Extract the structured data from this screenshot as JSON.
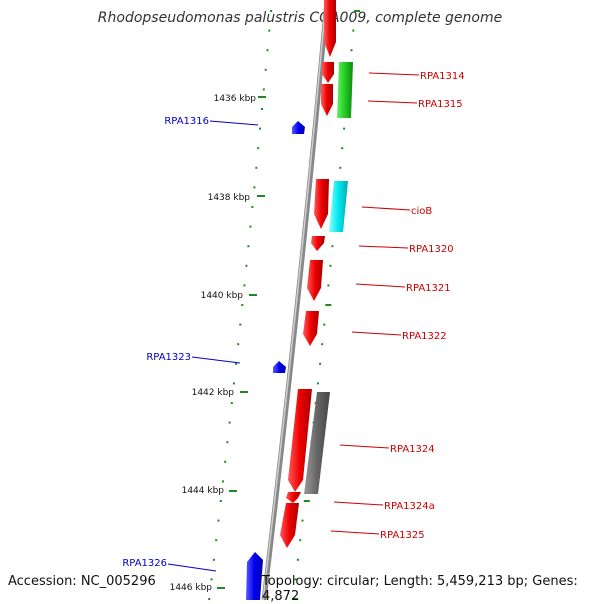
{
  "title": "Rhodopseudomonas palustris CGA009, complete genome",
  "accession": "Accession: NC_005296",
  "topology": "Topology: circular; Length: 5,459,213 bp; Genes: 4,872",
  "colors": {
    "forward": "#ff0000",
    "reverse": "#0000ff",
    "label_forward": "#cc0000",
    "label_reverse": "#0000cc",
    "tick": "#228822",
    "backbone": "#888888"
  },
  "ticks": [
    {
      "label": "1436 kbp",
      "pos": 1436
    },
    {
      "label": "1438 kbp",
      "pos": 1438
    },
    {
      "label": "1440 kbp",
      "pos": 1440
    },
    {
      "label": "1442 kbp",
      "pos": 1442
    },
    {
      "label": "1444 kbp",
      "pos": 1444
    },
    {
      "label": "1446 kbp",
      "pos": 1446
    }
  ],
  "genes": [
    {
      "name": "RPA1314",
      "strand": "+"
    },
    {
      "name": "RPA1315",
      "strand": "+"
    },
    {
      "name": "RPA1316",
      "strand": "-"
    },
    {
      "name": "cioB",
      "strand": "+"
    },
    {
      "name": "RPA1320",
      "strand": "+"
    },
    {
      "name": "RPA1321",
      "strand": "+"
    },
    {
      "name": "RPA1322",
      "strand": "+"
    },
    {
      "name": "RPA1323",
      "strand": "-"
    },
    {
      "name": "RPA1324",
      "strand": "+"
    },
    {
      "name": "RPA1324a",
      "strand": "+"
    },
    {
      "name": "RPA1325",
      "strand": "+"
    },
    {
      "name": "RPA1326",
      "strand": "-"
    }
  ]
}
